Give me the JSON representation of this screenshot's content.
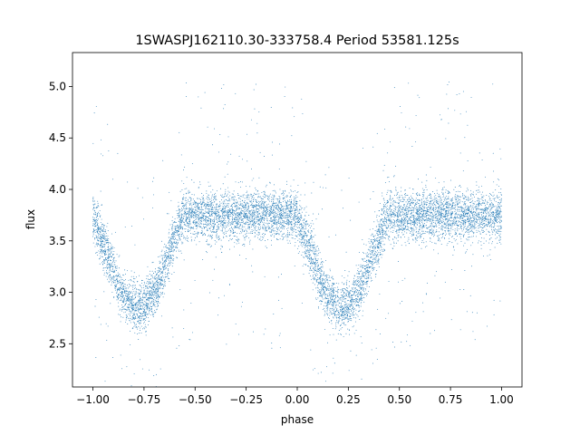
{
  "chart_data": {
    "type": "scatter",
    "title": "1SWASPJ162110.30-333758.4 Period 53581.125s",
    "xlabel": "phase",
    "ylabel": "flux",
    "xlim": [
      -1.1,
      1.1
    ],
    "ylim": [
      2.08,
      5.33
    ],
    "xticks": [
      -1.0,
      -0.75,
      -0.5,
      -0.25,
      0.0,
      0.25,
      0.5,
      0.75,
      1.0
    ],
    "xtick_labels": [
      "−1.00",
      "−0.75",
      "−0.50",
      "−0.25",
      "0.00",
      "0.25",
      "0.50",
      "0.75",
      "1.00"
    ],
    "yticks": [
      2.5,
      3.0,
      3.5,
      4.0,
      4.5,
      5.0
    ],
    "ytick_labels": [
      "2.5",
      "3.0",
      "3.5",
      "4.0",
      "4.5",
      "5.0"
    ],
    "grid": false,
    "marker_color": "#1f77b4",
    "series": [
      {
        "model": "folded eclipsing light curve, repeated over two cycles",
        "x_range": [
          -1.0,
          1.0
        ],
        "baseline_flux": 3.75,
        "minimum_flux": 2.85,
        "eclipse_center_phases": [
          -0.78,
          0.22
        ],
        "eclipse_half_width": 0.23,
        "point_count": 9000
      }
    ]
  }
}
